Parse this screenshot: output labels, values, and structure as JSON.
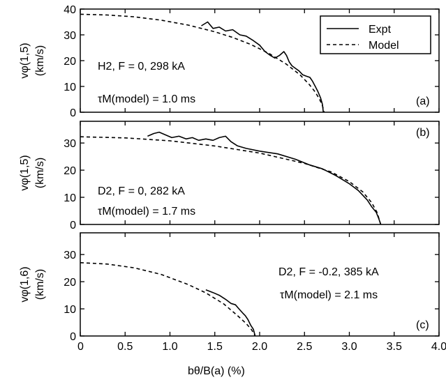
{
  "legend": {
    "position": "top-right of panel (a)",
    "items": [
      {
        "label": "Expt",
        "style": "solid"
      },
      {
        "label": "Model",
        "style": "dashed"
      }
    ]
  },
  "xaxis": {
    "label": "bθ/B(a)  (%)",
    "range": [
      0,
      4.0
    ],
    "ticks": [
      0,
      0.5,
      1.0,
      1.5,
      2.0,
      2.5,
      3.0,
      3.5,
      4.0
    ],
    "tick_labels": [
      "0",
      "0.5",
      "1.0",
      "1.5",
      "2.0",
      "2.5",
      "3.0",
      "3.5",
      "4.0"
    ]
  },
  "chart_data": [
    {
      "type": "line",
      "panel": "(a)",
      "ylabel": "vφ(1,5) (km/s)",
      "ylabel_line1": "vφ(1,5)",
      "ylabel_line2": "(km/s)",
      "ylim": [
        0,
        40
      ],
      "yticks": [
        0,
        10,
        20,
        30,
        40
      ],
      "ytick_labels": [
        "0",
        "10",
        "20",
        "30",
        "40"
      ],
      "annotation_line1": "H2, F = 0, 298 kA",
      "annotation_line2": "τM(model) = 1.0 ms",
      "series": [
        {
          "name": "Expt",
          "style": "solid",
          "x": [
            1.35,
            1.42,
            1.48,
            1.55,
            1.62,
            1.7,
            1.78,
            1.85,
            1.92,
            2.0,
            2.06,
            2.12,
            2.17,
            2.22,
            2.27,
            2.3,
            2.33,
            2.36,
            2.4,
            2.44,
            2.48,
            2.52,
            2.56,
            2.59,
            2.62,
            2.65,
            2.68,
            2.7,
            2.71
          ],
          "y": [
            33.5,
            35.0,
            32.5,
            33.0,
            31.5,
            32.0,
            30.0,
            29.5,
            28.0,
            26.0,
            23.5,
            22.0,
            21.0,
            22.0,
            23.5,
            22.0,
            19.5,
            18.0,
            17.0,
            16.0,
            14.5,
            14.0,
            13.5,
            12.0,
            10.0,
            8.0,
            5.5,
            3.0,
            0.0
          ]
        },
        {
          "name": "Model",
          "style": "dashed",
          "x": [
            0,
            0.3,
            0.6,
            0.9,
            1.2,
            1.5,
            1.7,
            1.9,
            2.1,
            2.3,
            2.45,
            2.55,
            2.62,
            2.67,
            2.7,
            2.72
          ],
          "y": [
            38.0,
            37.7,
            37.0,
            35.7,
            33.8,
            31.2,
            29.0,
            26.3,
            22.9,
            18.6,
            14.5,
            10.9,
            7.8,
            4.9,
            2.5,
            0.0
          ]
        }
      ]
    },
    {
      "type": "line",
      "panel": "(b)",
      "ylabel": "vφ(1,5) (km/s)",
      "ylabel_line1": "vφ(1,5)",
      "ylabel_line2": "(km/s)",
      "ylim": [
        0,
        38
      ],
      "yticks": [
        0,
        10,
        20,
        30
      ],
      "ytick_labels": [
        "0",
        "10",
        "20",
        "30"
      ],
      "annotation_line1": "D2, F = 0, 282 kA",
      "annotation_line2": "τM(model) = 1.7 ms",
      "series": [
        {
          "name": "Expt",
          "style": "solid",
          "x": [
            0.75,
            0.82,
            0.88,
            0.95,
            1.02,
            1.1,
            1.18,
            1.25,
            1.32,
            1.4,
            1.48,
            1.55,
            1.62,
            1.68,
            1.75,
            1.85,
            2.0,
            2.2,
            2.4,
            2.55,
            2.7,
            2.85,
            3.0,
            3.1,
            3.2,
            3.25,
            3.3,
            3.33,
            3.35
          ],
          "y": [
            32.5,
            33.5,
            34.0,
            33.0,
            32.0,
            32.5,
            31.5,
            32.0,
            31.0,
            31.5,
            31.0,
            32.0,
            32.5,
            30.5,
            29.0,
            28.0,
            27.0,
            26.0,
            24.0,
            22.0,
            20.5,
            18.0,
            15.0,
            12.5,
            9.0,
            6.5,
            4.5,
            2.0,
            0.0
          ]
        },
        {
          "name": "Model",
          "style": "dashed",
          "x": [
            0,
            0.5,
            1.0,
            1.5,
            2.0,
            2.5,
            2.8,
            3.0,
            3.15,
            3.25,
            3.31,
            3.35
          ],
          "y": [
            32.3,
            31.9,
            30.8,
            28.9,
            26.3,
            22.5,
            19.3,
            15.8,
            12.0,
            8.0,
            4.4,
            0.0
          ]
        }
      ]
    },
    {
      "type": "line",
      "panel": "(c)",
      "ylabel": "vφ(1,6) (km/s)",
      "ylabel_line1": "vφ(1,6)",
      "ylabel_line2": "(km/s)",
      "ylim": [
        0,
        38
      ],
      "yticks": [
        0,
        10,
        20,
        30
      ],
      "ytick_labels": [
        "0",
        "10",
        "20",
        "30"
      ],
      "annotation_line1": "D2, F = -0.2, 385 kA",
      "annotation_line2": "τM(model) = 2.1 ms",
      "series": [
        {
          "name": "Expt",
          "style": "solid",
          "x": [
            1.4,
            1.48,
            1.55,
            1.62,
            1.68,
            1.73,
            1.77,
            1.81,
            1.84,
            1.87,
            1.9,
            1.93,
            1.95
          ],
          "y": [
            17.0,
            16.0,
            15.0,
            13.5,
            12.0,
            11.5,
            10.0,
            8.5,
            7.5,
            6.0,
            4.0,
            2.5,
            0.0
          ]
        },
        {
          "name": "Model",
          "style": "dashed",
          "x": [
            0,
            0.3,
            0.6,
            0.9,
            1.2,
            1.4,
            1.6,
            1.75,
            1.85,
            1.91,
            1.95
          ],
          "y": [
            27.0,
            26.5,
            25.1,
            22.7,
            19.0,
            15.9,
            11.8,
            7.6,
            4.6,
            2.3,
            0.0
          ]
        }
      ]
    }
  ]
}
